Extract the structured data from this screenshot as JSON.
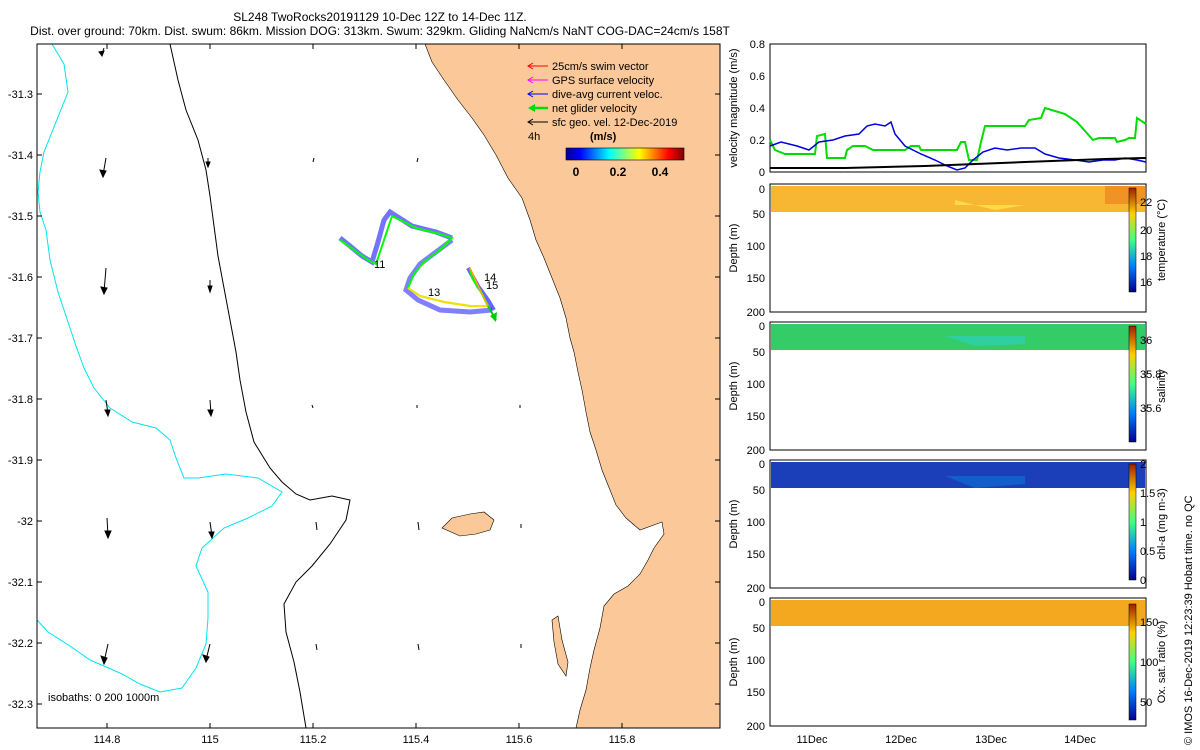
{
  "header": {
    "title": "SL248 TwoRocks20191129 10-Dec 12Z to 14-Dec 11Z.",
    "subtitle": "Dist. over ground: 70km. Dist. swum: 86km. Mission DOG: 313km. Swum: 329km. Gliding NaNcm/s NaNT COG-DAC=24cm/s 158T"
  },
  "map": {
    "lat_ticks": [
      "-31.3",
      "-31.4",
      "-31.5",
      "-31.6",
      "-31.7",
      "-31.8",
      "-31.9",
      "-32",
      "-32.1",
      "-32.2",
      "-32.3"
    ],
    "lon_ticks": [
      "114.8",
      "115",
      "115.2",
      "115.4",
      "115.6",
      "115.8"
    ],
    "legend": [
      {
        "label": "25cm/s swim vector",
        "color": "#ff0000"
      },
      {
        "label": "GPS surface velocity",
        "color": "#ff00ff"
      },
      {
        "label": "dive-avg current veloc.",
        "color": "#0000ff"
      },
      {
        "label": "net glider velocity",
        "color": "#00dd00"
      },
      {
        "label": "sfc geo. vel. 12-Dec-2019",
        "color": "#000000"
      }
    ],
    "time_step": "4h",
    "speed_units": "(m/s)",
    "speed_ticks": [
      "0",
      "0.2",
      "0.4"
    ],
    "day_labels": [
      "11",
      "13",
      "14",
      "15"
    ],
    "isobaths": "isobaths: 0   200  1000m",
    "colors": {
      "land": "#fbc899",
      "isobath_200": "#000000",
      "isobath_1000": "#00e5ee"
    }
  },
  "velocity_plot": {
    "ylabel": "velocity magnitude (m/s)",
    "yticks": [
      "0",
      "0.2",
      "0.4",
      "0.6",
      "0.8"
    ],
    "ylim": [
      0,
      0.8
    ]
  },
  "profiles": [
    {
      "name": "temperature",
      "ylabel": "Depth (m)",
      "clabel": "temperature (°C)",
      "cticks": [
        "16",
        "18",
        "20",
        "22"
      ],
      "color": "#f5b030"
    },
    {
      "name": "salinity",
      "ylabel": "Depth (m)",
      "clabel": "salinity",
      "cticks": [
        "35.6",
        "35.8",
        "36"
      ],
      "color": "#30c860"
    },
    {
      "name": "chl-a",
      "ylabel": "Depth (m)",
      "clabel": "chl-a (mg m-3)",
      "cticks": [
        "0",
        "0.5",
        "1",
        "1.5",
        "2"
      ],
      "color": "#1040c0"
    },
    {
      "name": "oxygen",
      "ylabel": "Depth (m)",
      "clabel": "Ox. sat. ratio (%)",
      "cticks": [
        "50",
        "100",
        "150"
      ],
      "color": "#f0a820"
    }
  ],
  "depth_ticks": [
    "0",
    "50",
    "100",
    "150",
    "200"
  ],
  "date_labels": [
    "11Dec",
    "12Dec",
    "13Dec",
    "14Dec"
  ],
  "stamp": "© IMOS 16-Dec-2019 12:23:39 Hobart time. no QC"
}
